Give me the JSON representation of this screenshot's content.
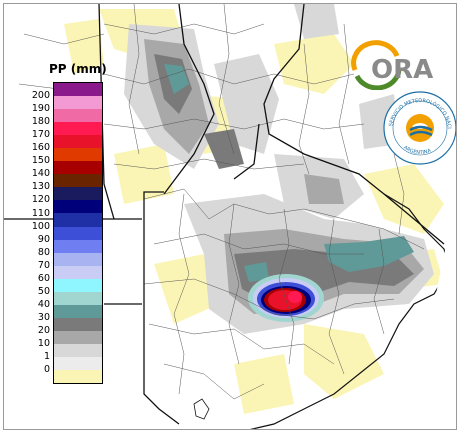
{
  "legend": {
    "title": "PP (mm)",
    "levels": [
      "200",
      "190",
      "180",
      "170",
      "160",
      "150",
      "140",
      "130",
      "120",
      "110",
      "100",
      "90",
      "80",
      "70",
      "60",
      "50",
      "40",
      "30",
      "20",
      "10",
      "1",
      "0"
    ],
    "colors": [
      "#8a1a8c",
      "#f39ad4",
      "#f06aa6",
      "#ff1a52",
      "#e8122a",
      "#e03a00",
      "#a80000",
      "#6b2400",
      "#1a1a5e",
      "#00007a",
      "#1f2fa6",
      "#3d4fd6",
      "#6f7ef0",
      "#a8b3f2",
      "#c9ccf5",
      "#8ff5ff",
      "#a0d6cf",
      "#5f9a98",
      "#7a7a7a",
      "#a8a8a8",
      "#d8d8d8",
      "#ececec",
      "#fbf5b5"
    ]
  },
  "logo": {
    "wordmark": "ORA",
    "seal_text": "SERVICIO METEOROLÓGICO NACIONAL",
    "seal_country": "ARGENTINA"
  },
  "map": {
    "region": "Buenos Aires province precipitation",
    "max_cell_color": "#e8122a"
  }
}
